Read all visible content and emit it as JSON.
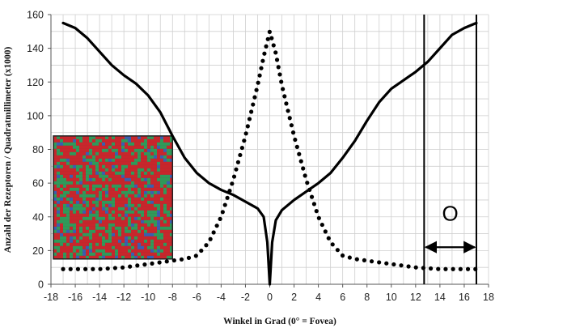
{
  "chart_data": {
    "type": "line",
    "title": "",
    "xlabel": "Winkel in  Grad   (0° = Fovea)",
    "ylabel": "Anzahl der Rezeptoren / Quadratmillimeter (x1000)",
    "xlim": [
      -18,
      18
    ],
    "ylim": [
      0,
      160
    ],
    "xticks": [
      -18,
      -16,
      -14,
      -12,
      -10,
      -8,
      -6,
      -4,
      -2,
      0,
      2,
      4,
      6,
      8,
      10,
      12,
      14,
      16,
      18
    ],
    "yticks": [
      0,
      20,
      40,
      60,
      80,
      100,
      120,
      140,
      160
    ],
    "grid": true,
    "series": [
      {
        "style": "solid",
        "color": "#000000",
        "points": [
          [
            -17,
            155
          ],
          [
            -16,
            152
          ],
          [
            -15,
            146
          ],
          [
            -14,
            138
          ],
          [
            -13,
            130
          ],
          [
            -12,
            124
          ],
          [
            -11,
            119
          ],
          [
            -10,
            112
          ],
          [
            -9,
            102
          ],
          [
            -8,
            88
          ],
          [
            -7,
            75
          ],
          [
            -6,
            66
          ],
          [
            -5,
            60
          ],
          [
            -4,
            56
          ],
          [
            -3,
            53
          ],
          [
            -2,
            49
          ],
          [
            -1,
            45
          ],
          [
            -0.5,
            40
          ],
          [
            -0.2,
            25
          ],
          [
            0,
            0
          ],
          [
            0.2,
            25
          ],
          [
            0.5,
            38
          ],
          [
            1,
            44
          ],
          [
            2,
            50
          ],
          [
            3,
            55
          ],
          [
            4,
            60
          ],
          [
            5,
            66
          ],
          [
            6,
            75
          ],
          [
            7,
            85
          ],
          [
            8,
            97
          ],
          [
            9,
            108
          ],
          [
            10,
            116
          ],
          [
            11,
            121
          ],
          [
            12,
            126
          ],
          [
            13,
            132
          ],
          [
            14,
            140
          ],
          [
            15,
            148
          ],
          [
            16,
            152
          ],
          [
            17,
            155
          ]
        ]
      },
      {
        "style": "dotted",
        "color": "#000000",
        "points": [
          [
            -17,
            9
          ],
          [
            -16,
            9
          ],
          [
            -15,
            9
          ],
          [
            -14,
            9
          ],
          [
            -13,
            9.5
          ],
          [
            -12,
            10
          ],
          [
            -11,
            11
          ],
          [
            -10,
            12
          ],
          [
            -9,
            13
          ],
          [
            -8,
            14
          ],
          [
            -7,
            15
          ],
          [
            -6,
            17
          ],
          [
            -5,
            25
          ],
          [
            -4,
            40
          ],
          [
            -3,
            62
          ],
          [
            -2,
            88
          ],
          [
            -1,
            118
          ],
          [
            -0.5,
            135
          ],
          [
            0,
            150
          ],
          [
            0.5,
            137
          ],
          [
            1,
            118
          ],
          [
            2,
            88
          ],
          [
            3,
            62
          ],
          [
            4,
            40
          ],
          [
            5,
            25
          ],
          [
            6,
            17
          ],
          [
            7,
            15
          ],
          [
            8,
            14
          ],
          [
            9,
            13
          ],
          [
            10,
            12
          ],
          [
            11,
            11
          ],
          [
            12,
            10
          ],
          [
            13,
            9.5
          ],
          [
            14,
            9
          ],
          [
            15,
            9
          ],
          [
            16,
            9
          ],
          [
            17,
            9
          ]
        ]
      }
    ],
    "vertical_lines": [
      12.7,
      17
    ],
    "annotation": {
      "text": "O",
      "arrow_from_x": 12.7,
      "arrow_to_x": 17,
      "arrow_y": 22,
      "label_y": 42
    },
    "inset": {
      "description": "mosaic",
      "colors": [
        "#c8262c",
        "#2f9a5a",
        "#3a5fb0"
      ],
      "xlim": [
        -18,
        -8
      ],
      "ylim": [
        15,
        88
      ]
    }
  }
}
